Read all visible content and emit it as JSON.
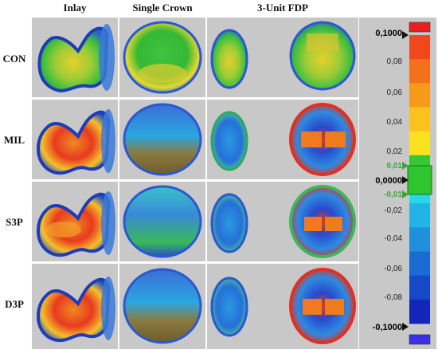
{
  "columns": [
    "Inlay",
    "Single Crown",
    "3-Unit FDP"
  ],
  "rows": [
    "CON",
    "MIL",
    "S3P",
    "D3P"
  ],
  "scale": {
    "max_label": "0,1000",
    "min_label": "-0,1000",
    "zero_label": "0,0000",
    "tol_pos_label": "0,01",
    "tol_neg_label": "-0,01",
    "ticks": [
      "0,08",
      "0,06",
      "0,04",
      "0,02",
      "-0,02",
      "-0,04",
      "-0,06",
      "-0,08"
    ],
    "colors": [
      "#e82020",
      "#f0481c",
      "#f4701a",
      "#f79a1a",
      "#f9c21c",
      "#fbe21e",
      "#36c636",
      "#28d8e8",
      "#22b4e6",
      "#1e90dc",
      "#1a6cd2",
      "#1648c8",
      "#1226bc",
      "#3a2ee8"
    ]
  }
}
